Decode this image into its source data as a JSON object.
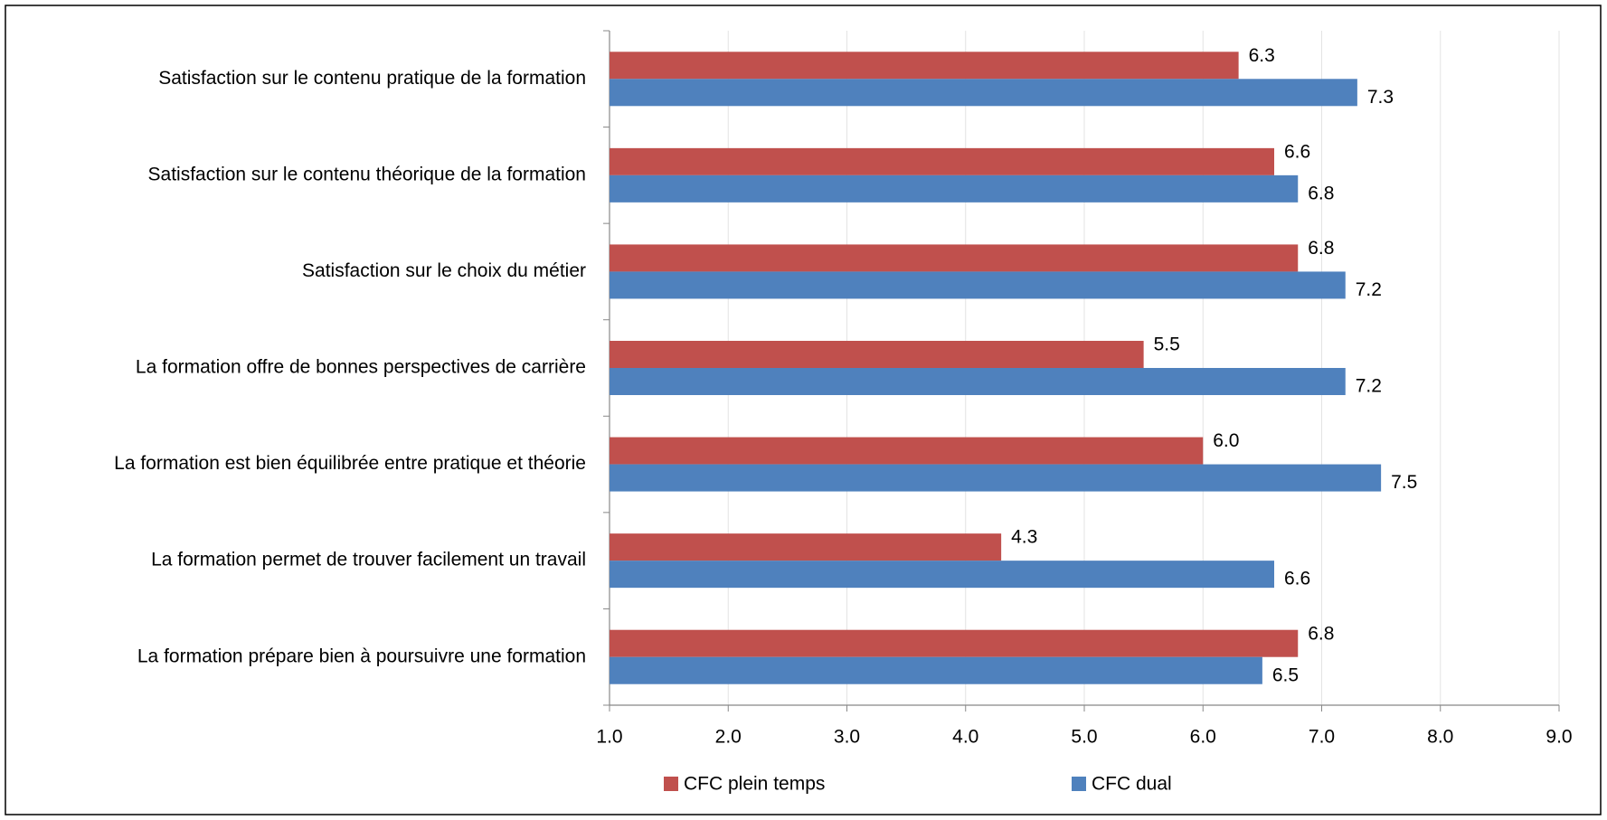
{
  "chart_data": {
    "type": "bar",
    "orientation": "horizontal",
    "categories": [
      "Satisfaction sur le contenu pratique de la formation",
      "Satisfaction sur le contenu théorique de la formation",
      "Satisfaction sur le choix du métier",
      "La formation offre de bonnes perspectives de carrière",
      "La formation est bien équilibrée entre pratique et théorie",
      "La formation permet de trouver facilement un travail",
      "La formation prépare bien à poursuivre une formation"
    ],
    "series": [
      {
        "name": "CFC plein temps",
        "color": "#c0504d",
        "values": [
          6.3,
          6.6,
          6.8,
          5.5,
          6.0,
          4.3,
          6.8
        ],
        "value_labels": [
          "6.3",
          "6.6",
          "6.8",
          "5.5",
          "6.0",
          "4.3",
          "6.8"
        ]
      },
      {
        "name": "CFC dual",
        "color": "#4f81bd",
        "values": [
          7.3,
          6.8,
          7.2,
          7.2,
          7.5,
          6.6,
          6.5
        ],
        "value_labels": [
          "7.3",
          "6.8",
          "7.2",
          "7.2",
          "7.5",
          "6.6",
          "6.5"
        ]
      }
    ],
    "xlim": [
      1,
      9
    ],
    "xticks": [
      {
        "value": 1,
        "label": "1.0"
      },
      {
        "value": 2,
        "label": "2.0"
      },
      {
        "value": 3,
        "label": "3.0"
      },
      {
        "value": 4,
        "label": "4.0"
      },
      {
        "value": 5,
        "label": "5.0"
      },
      {
        "value": 6,
        "label": "6.0"
      },
      {
        "value": 7,
        "label": "7.0"
      },
      {
        "value": 8,
        "label": "8.0"
      },
      {
        "value": 9,
        "label": "9.0"
      }
    ],
    "grid": true,
    "legend": "bottom"
  }
}
